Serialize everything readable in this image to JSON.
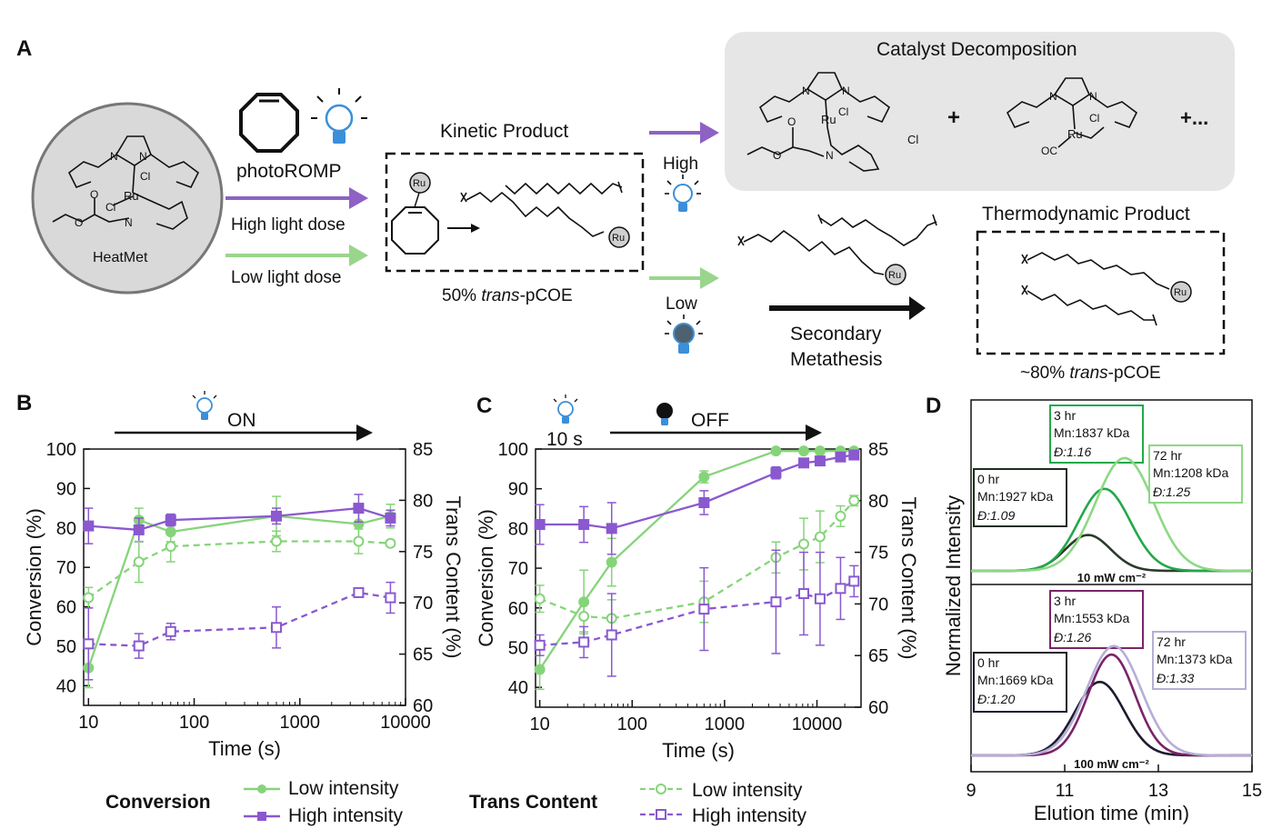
{
  "panel_a": {
    "letter": "A",
    "heatmet_label": "HeatMet",
    "photoromp_label": "photoROMP",
    "high_dose_label": "High light dose",
    "low_dose_label": "Low light dose",
    "kinetic_title": "Kinetic Product",
    "kinetic_caption_pre": "50% ",
    "kinetic_caption_it": "trans",
    "kinetic_caption_post": "-pCOE",
    "ru": "Ru",
    "cl": "Cl",
    "cl_minus": "Cl",
    "oc": "OC",
    "n": "N",
    "o": "O",
    "high_label": "High",
    "low_label": "Low",
    "decomp_title": "Catalyst Decomposition",
    "plus": "+",
    "plus_more": "+...",
    "secondary_line1": "Secondary",
    "secondary_line2": "Metathesis",
    "thermo_title": "Thermodynamic Product",
    "thermo_caption_pre": "~80% ",
    "thermo_caption_it": "trans",
    "thermo_caption_post": "-pCOE"
  },
  "panel_b": {
    "letter": "B",
    "banner": "ON",
    "xlabel": "Time (s)",
    "ylabel_left": "Conversion (%)",
    "ylabel_right": "Trans Content (%)",
    "x_ticks": [
      "10",
      "100",
      "1000",
      "10000"
    ],
    "y_left_ticks": [
      "40",
      "50",
      "60",
      "70",
      "80",
      "90",
      "100"
    ],
    "y_right_ticks": [
      "60",
      "65",
      "70",
      "75",
      "80",
      "85"
    ]
  },
  "panel_c": {
    "letter": "C",
    "banner_on": "10 s",
    "banner_off": "OFF",
    "xlabel": "Time (s)",
    "ylabel_left": "Conversion (%)",
    "ylabel_right": "Trans Content (%)",
    "x_ticks": [
      "10",
      "100",
      "1000",
      "10000"
    ],
    "y_left_ticks": [
      "40",
      "50",
      "60",
      "70",
      "80",
      "90",
      "100"
    ],
    "y_right_ticks": [
      "60",
      "65",
      "70",
      "75",
      "80",
      "85"
    ]
  },
  "panel_d": {
    "letter": "D",
    "xlabel": "Elution time (min)",
    "ylabel": "Normalized Intensity",
    "x_ticks": [
      "9",
      "11",
      "13",
      "15"
    ],
    "top_intensity": "10 mW cm⁻²",
    "bottom_intensity": "100 mW cm⁻²"
  },
  "legend": {
    "conversion_title": "Conversion",
    "trans_title": "Trans Content",
    "low": "Low intensity",
    "high": "High intensity"
  },
  "colors": {
    "green": "#86d47a",
    "purple": "#8a58cf",
    "arrow_purple": "#8e62c4",
    "arrow_green": "#9ad58c",
    "gray_panel": "#e6e6e6"
  },
  "chart_data": [
    {
      "panel": "B",
      "type": "line",
      "xscale": "log",
      "xlabel": "Time (s)",
      "ylabel": "Conversion (%)",
      "y2label": "Trans Content (%)",
      "xlim": [
        9,
        10000
      ],
      "ylim": [
        35,
        100
      ],
      "y2lim": [
        60,
        85
      ],
      "series": [
        {
          "name": "Low intensity",
          "group": "Conversion",
          "axis": "left",
          "style": "solid-filled-circle",
          "x": [
            10,
            30,
            60,
            600,
            3600,
            7200
          ],
          "y": [
            44.5,
            82,
            79,
            83,
            81,
            83
          ],
          "err": [
            5,
            3,
            2.5,
            5,
            5,
            3
          ]
        },
        {
          "name": "High intensity",
          "group": "Conversion",
          "axis": "left",
          "style": "solid-filled-square",
          "x": [
            10,
            30,
            60,
            600,
            3600,
            7200
          ],
          "y": [
            80.5,
            79.5,
            82,
            83,
            85,
            82.5
          ],
          "err": [
            4.5,
            3,
            1.5,
            2,
            3.5,
            2
          ]
        },
        {
          "name": "Low intensity",
          "group": "Trans Content",
          "axis": "right",
          "style": "dashed-open-circle",
          "x": [
            10,
            30,
            60,
            600,
            3600,
            7200
          ],
          "y": [
            70.5,
            74,
            75.5,
            76,
            76,
            75.8
          ],
          "err": [
            1,
            2,
            1.5,
            1,
            1.2,
            0.3
          ]
        },
        {
          "name": "High intensity",
          "group": "Trans Content",
          "axis": "right",
          "style": "dashed-open-square",
          "x": [
            10,
            30,
            60,
            600,
            3600,
            7200
          ],
          "y": [
            66,
            65.8,
            67.2,
            67.6,
            71,
            70.5
          ],
          "err": [
            3.5,
            1.2,
            0.8,
            2,
            0.4,
            1.5
          ]
        }
      ]
    },
    {
      "panel": "C",
      "type": "line",
      "xscale": "log",
      "xlabel": "Time (s)",
      "ylabel": "Conversion (%)",
      "y2label": "Trans Content (%)",
      "xlim": [
        9,
        30000
      ],
      "ylim": [
        35,
        100
      ],
      "y2lim": [
        60,
        85
      ],
      "series": [
        {
          "name": "Low intensity",
          "group": "Conversion",
          "axis": "left",
          "style": "solid-filled-circle",
          "x": [
            10,
            30,
            60,
            600,
            3600,
            7200,
            10800,
            18000,
            25200
          ],
          "y": [
            44.5,
            61.5,
            71.5,
            93,
            99.5,
            99.5,
            99.5,
            99.5,
            99.5
          ],
          "err": [
            5,
            8,
            6,
            1.5,
            0.5,
            0.5,
            0.5,
            0.5,
            0.5
          ]
        },
        {
          "name": "High intensity",
          "group": "Conversion",
          "axis": "left",
          "style": "solid-filled-square",
          "x": [
            10,
            30,
            60,
            600,
            3600,
            7200,
            10800,
            18000,
            25200
          ],
          "y": [
            81,
            81,
            80,
            86.5,
            94,
            96.5,
            97,
            98,
            98.5
          ],
          "err": [
            5,
            4.5,
            6.5,
            3,
            1.5,
            1,
            1,
            0.8,
            0.8
          ]
        },
        {
          "name": "Low intensity",
          "group": "Trans Content",
          "axis": "right",
          "style": "dashed-open-circle",
          "x": [
            10,
            30,
            60,
            600,
            3600,
            7200,
            10800,
            18000,
            25200
          ],
          "y": [
            70.5,
            68.8,
            68.6,
            70.2,
            74.5,
            75.8,
            76.5,
            78.5,
            80
          ],
          "err": [
            1.3,
            1.5,
            1.8,
            2,
            1.5,
            2.5,
            2.5,
            1,
            0.5
          ]
        },
        {
          "name": "High intensity",
          "group": "Trans Content",
          "axis": "right",
          "style": "dashed-open-square",
          "x": [
            10,
            30,
            60,
            600,
            3600,
            7200,
            10800,
            18000,
            25200
          ],
          "y": [
            66,
            66.3,
            67,
            69.5,
            70.2,
            71,
            70.5,
            71.5,
            72.2
          ],
          "err": [
            1,
            1.5,
            4,
            4,
            5,
            4,
            4.5,
            3,
            1.5
          ]
        }
      ]
    },
    {
      "panel": "D",
      "type": "line",
      "xlabel": "Elution time (min)",
      "ylabel": "Normalized Intensity",
      "xlim": [
        9,
        15
      ],
      "subplots": [
        {
          "label": "10 mW cm⁻²",
          "series": [
            {
              "time": "0 hr",
              "Mn": "Mn:1927 kDa",
              "D": "Đ:1.09",
              "peak_x": 11.5,
              "peak_height": 0.21,
              "width": 0.48,
              "color": "#2a3c2a"
            },
            {
              "time": "3 hr",
              "Mn": "Mn:1837 kDa",
              "D": "Đ:1.16",
              "peak_x": 11.85,
              "peak_height": 0.48,
              "width": 0.55,
              "color": "#22a84a"
            },
            {
              "time": "72 hr",
              "Mn": "Mn:1208 kDa",
              "D": "Đ:1.25",
              "peak_x": 12.28,
              "peak_height": 0.66,
              "width": 0.62,
              "color": "#8dd884"
            }
          ]
        },
        {
          "label": "100 mW cm⁻²",
          "series": [
            {
              "time": "0 hr",
              "Mn": "Mn:1669 kDa",
              "D": "Đ:1.20",
              "peak_x": 11.75,
              "peak_height": 0.43,
              "width": 0.52,
              "color": "#1e1b2e"
            },
            {
              "time": "3 hr",
              "Mn": "Mn:1553 kDa",
              "D": "Đ:1.26",
              "peak_x": 12.0,
              "peak_height": 0.59,
              "width": 0.5,
              "color": "#7a2468"
            },
            {
              "time": "72 hr",
              "Mn": "Mn:1373 kDa",
              "D": "Đ:1.33",
              "peak_x": 12.05,
              "peak_height": 0.64,
              "width": 0.58,
              "color": "#b6aed8"
            }
          ]
        }
      ]
    }
  ]
}
